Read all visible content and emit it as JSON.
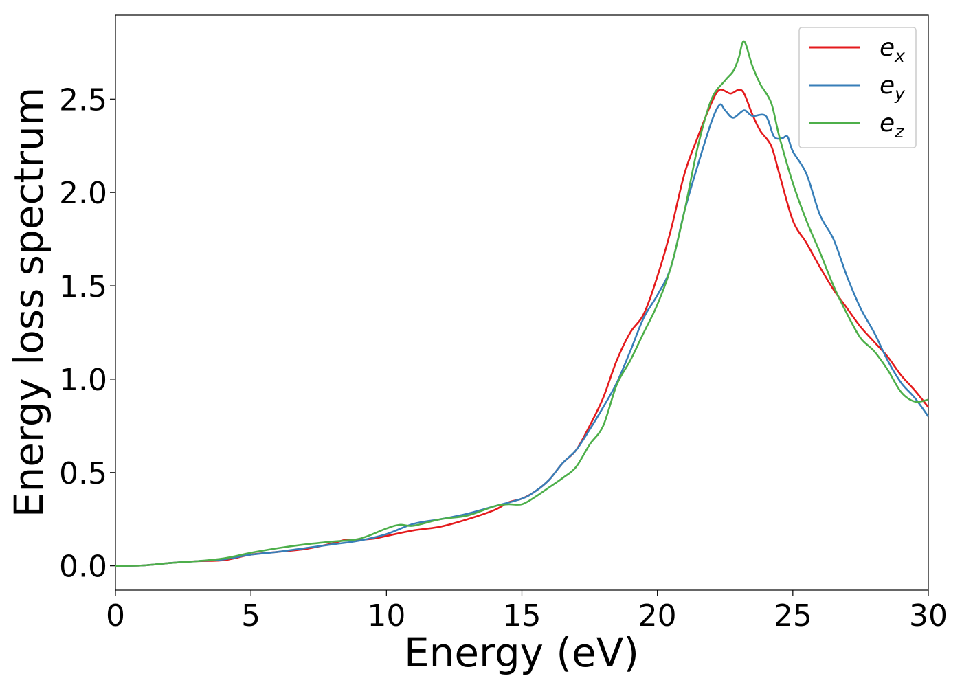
{
  "chart_data": {
    "type": "line",
    "xlabel": "Energy (eV)",
    "ylabel": "Energy loss spectrum",
    "xlim": [
      0,
      30
    ],
    "ylim": [
      -0.13,
      2.95
    ],
    "xticks": [
      0,
      5,
      10,
      15,
      20,
      25,
      30
    ],
    "xtick_labels": [
      "0",
      "5",
      "10",
      "15",
      "20",
      "25",
      "30"
    ],
    "yticks": [
      0.0,
      0.5,
      1.0,
      1.5,
      2.0,
      2.5
    ],
    "ytick_labels": [
      "0.0",
      "0.5",
      "1.0",
      "1.5",
      "2.0",
      "2.5"
    ],
    "grid": false,
    "legend_position": "top-right",
    "series": [
      {
        "name": "e",
        "subscript": "x",
        "color": "#e41a1c",
        "x": [
          0,
          1,
          2,
          3,
          4,
          5,
          6,
          7,
          8,
          8.5,
          9,
          9.5,
          10,
          11,
          12,
          13,
          14,
          14.5,
          15,
          15.5,
          16,
          16.5,
          17,
          17.5,
          18,
          18.5,
          19,
          19.5,
          20,
          20.5,
          21,
          21.5,
          22,
          22.3,
          22.7,
          23,
          23.2,
          23.5,
          23.8,
          24.2,
          24.5,
          25,
          25.5,
          26,
          26.5,
          27,
          27.5,
          28,
          28.5,
          29,
          29.5,
          30
        ],
        "y": [
          0.0,
          0.002,
          0.015,
          0.025,
          0.03,
          0.06,
          0.075,
          0.09,
          0.12,
          0.14,
          0.14,
          0.145,
          0.16,
          0.19,
          0.21,
          0.25,
          0.3,
          0.34,
          0.36,
          0.4,
          0.46,
          0.55,
          0.62,
          0.75,
          0.9,
          1.1,
          1.25,
          1.35,
          1.55,
          1.8,
          2.1,
          2.3,
          2.48,
          2.55,
          2.53,
          2.55,
          2.53,
          2.42,
          2.33,
          2.25,
          2.1,
          1.85,
          1.73,
          1.6,
          1.48,
          1.38,
          1.28,
          1.2,
          1.12,
          1.02,
          0.94,
          0.85
        ]
      },
      {
        "name": "e",
        "subscript": "y",
        "color": "#377eb8",
        "x": [
          0,
          1,
          2,
          3,
          4,
          5,
          6,
          7,
          8,
          9,
          10,
          11,
          12,
          13,
          14,
          15,
          15.5,
          16,
          16.5,
          17,
          17.5,
          18,
          18.5,
          19,
          19.5,
          20,
          20.5,
          21,
          21.5,
          22,
          22.3,
          22.5,
          22.8,
          23.2,
          23.5,
          24,
          24.3,
          24.6,
          24.8,
          25,
          25.5,
          26,
          26.5,
          27,
          27.5,
          28,
          28.5,
          29,
          29.5,
          30
        ],
        "y": [
          0.0,
          0.002,
          0.015,
          0.025,
          0.035,
          0.06,
          0.075,
          0.095,
          0.115,
          0.135,
          0.17,
          0.225,
          0.25,
          0.28,
          0.32,
          0.36,
          0.4,
          0.46,
          0.55,
          0.62,
          0.73,
          0.85,
          0.98,
          1.15,
          1.33,
          1.45,
          1.6,
          1.9,
          2.15,
          2.38,
          2.47,
          2.44,
          2.4,
          2.44,
          2.41,
          2.41,
          2.3,
          2.29,
          2.3,
          2.22,
          2.1,
          1.88,
          1.75,
          1.55,
          1.38,
          1.25,
          1.1,
          0.98,
          0.9,
          0.8
        ]
      },
      {
        "name": "e",
        "subscript": "z",
        "color": "#4daf4a",
        "x": [
          0,
          1,
          2,
          3,
          4,
          5,
          6,
          7,
          8,
          9,
          10,
          10.5,
          11,
          12,
          13,
          14,
          14.5,
          15,
          15.5,
          16,
          16.5,
          17,
          17.5,
          18,
          18.5,
          19,
          19.5,
          20,
          20.5,
          21,
          21.5,
          22,
          22.5,
          22.8,
          23,
          23.2,
          23.5,
          23.8,
          24.2,
          24.5,
          25,
          25.5,
          26,
          26.5,
          27,
          27.5,
          28,
          28.5,
          29,
          29.5,
          30
        ],
        "y": [
          0.0,
          0.002,
          0.015,
          0.025,
          0.04,
          0.07,
          0.095,
          0.115,
          0.13,
          0.145,
          0.2,
          0.22,
          0.215,
          0.25,
          0.27,
          0.32,
          0.33,
          0.33,
          0.37,
          0.42,
          0.47,
          0.53,
          0.65,
          0.75,
          0.97,
          1.1,
          1.25,
          1.4,
          1.6,
          1.9,
          2.25,
          2.5,
          2.6,
          2.65,
          2.72,
          2.81,
          2.68,
          2.58,
          2.48,
          2.3,
          2.05,
          1.85,
          1.68,
          1.5,
          1.35,
          1.22,
          1.15,
          1.05,
          0.93,
          0.88,
          0.89
        ]
      }
    ]
  }
}
